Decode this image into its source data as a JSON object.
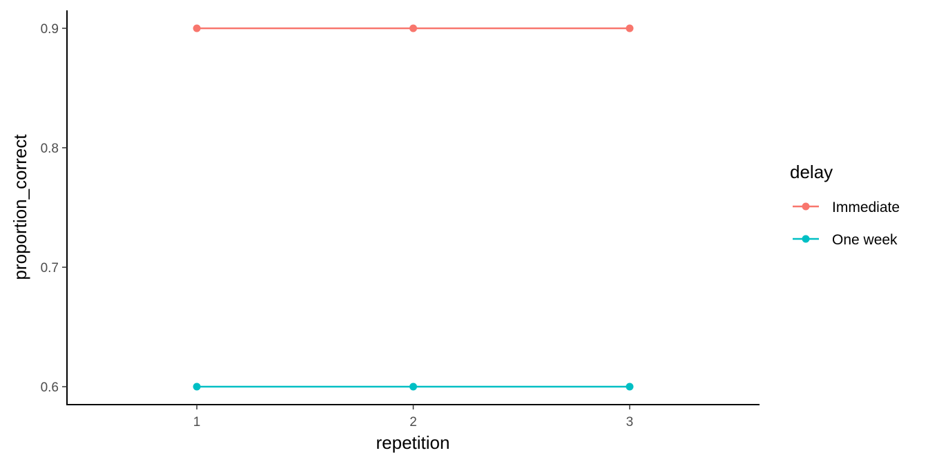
{
  "chart_data": {
    "type": "line",
    "title": "",
    "xlabel": "repetition",
    "ylabel": "proportion_correct",
    "x": [
      1,
      2,
      3
    ],
    "x_tick_labels": [
      "1",
      "2",
      "3"
    ],
    "xlim": [
      0.4,
      3.6
    ],
    "y_ticks": [
      0.6,
      0.7,
      0.8,
      0.9
    ],
    "y_tick_labels": [
      "0.6",
      "0.7",
      "0.8",
      "0.9"
    ],
    "ylim": [
      0.585,
      0.915
    ],
    "grid": false,
    "legend": {
      "title": "delay",
      "position": "right"
    },
    "series": [
      {
        "name": "Immediate",
        "color": "#F8766D",
        "values": [
          0.9,
          0.9,
          0.9
        ]
      },
      {
        "name": "One week",
        "color": "#00BFC4",
        "values": [
          0.6,
          0.6,
          0.6
        ]
      }
    ]
  }
}
